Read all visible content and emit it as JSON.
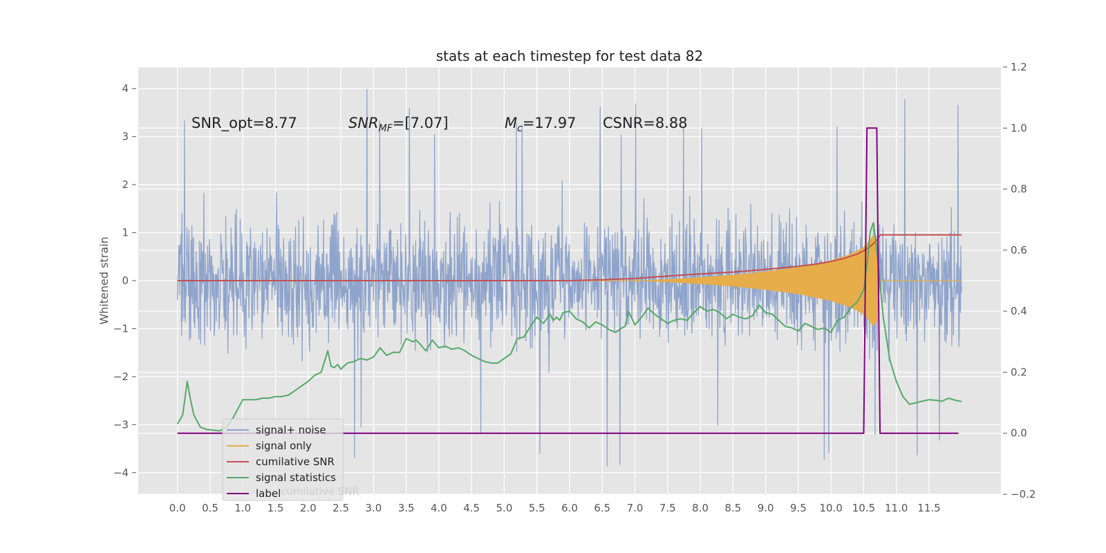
{
  "chart_data": {
    "type": "line",
    "title": "stats at each timestep for test data 82",
    "ylabel": "Whitened strain",
    "xlabel": "",
    "xlim": [
      -0.6,
      12.6
    ],
    "ylim": [
      -4.45,
      4.45
    ],
    "y2lim": [
      -0.2,
      1.2
    ],
    "grid": true,
    "x_ticks": [
      "0.0",
      "0.5",
      "1.0",
      "1.5",
      "2.0",
      "2.5",
      "3.0",
      "3.5",
      "4.0",
      "4.5",
      "5.0",
      "5.5",
      "6.0",
      "6.5",
      "7.0",
      "7.5",
      "8.0",
      "8.5",
      "9.0",
      "9.5",
      "10.0",
      "10.5",
      "11.0",
      "11.5"
    ],
    "x_tick_values": [
      0,
      0.5,
      1,
      1.5,
      2,
      2.5,
      3,
      3.5,
      4,
      4.5,
      5,
      5.5,
      6,
      6.5,
      7,
      7.5,
      8,
      8.5,
      9,
      9.5,
      10,
      10.5,
      11,
      11.5
    ],
    "y_ticks": [
      "4",
      "3",
      "2",
      "1",
      "0",
      "−1",
      "−2",
      "−3",
      "−4"
    ],
    "y_tick_values": [
      4,
      3,
      2,
      1,
      0,
      -1,
      -2,
      -3,
      -4
    ],
    "y2_ticks": [
      "1.2",
      "1.0",
      "0.8",
      "0.6",
      "0.4",
      "0.2",
      "0.0",
      "−0.2"
    ],
    "y2_tick_values": [
      1.2,
      1.0,
      0.8,
      0.6,
      0.4,
      0.2,
      0.0,
      -0.2
    ],
    "annotations": {
      "snr_opt": "SNR_opt=8.77",
      "snr_mf_main": "SNR",
      "snr_mf_sub": "MF",
      "snr_mf_value": "=[7.07]",
      "mc_main": "M",
      "mc_sub": "c",
      "mc_value": "=17.97",
      "csnr": "CSNR=8.88"
    },
    "legend": {
      "placement": "lower-left",
      "entries": [
        "signal+ noise",
        "signal only",
        "cumilative SNR",
        "signal statistics",
        "label"
      ],
      "ghost_text": "cumilative SNR"
    },
    "series": [
      {
        "name": "signal+ noise",
        "axis": "left",
        "color": "#8fa4cb",
        "x_range": [
          0,
          12.0
        ],
        "typical_envelope": 2.0,
        "extreme_max": 4.1,
        "extreme_min": -4.1
      },
      {
        "name": "signal only",
        "axis": "left",
        "color": "#e6ad4a",
        "envelope": {
          "x": [
            7.0,
            7.5,
            8.0,
            8.5,
            9.0,
            9.5,
            10.0,
            10.3,
            10.5,
            10.6,
            10.65,
            10.7,
            10.75
          ],
          "amp": [
            0.0,
            0.03,
            0.07,
            0.12,
            0.19,
            0.28,
            0.42,
            0.55,
            0.7,
            0.85,
            0.95,
            0.85,
            0.0
          ]
        },
        "after": {
          "x": [
            10.75,
            12.0
          ],
          "y": 0.0
        }
      },
      {
        "name": "cumilative SNR",
        "axis": "right",
        "color": "#c44e52",
        "x": [
          0,
          6.0,
          6.5,
          7.0,
          7.5,
          8.0,
          8.5,
          9.0,
          9.5,
          9.8,
          10.0,
          10.2,
          10.4,
          10.5,
          10.6,
          10.7,
          10.75,
          12.0
        ],
        "y": [
          0.5,
          0.5,
          0.503,
          0.507,
          0.515,
          0.522,
          0.528,
          0.537,
          0.547,
          0.555,
          0.563,
          0.573,
          0.587,
          0.598,
          0.612,
          0.632,
          0.65,
          0.65
        ]
      },
      {
        "name": "signal statistics",
        "axis": "right",
        "color": "#55a868",
        "x": [
          0,
          0.08,
          0.15,
          0.2,
          0.25,
          0.35,
          0.45,
          0.55,
          0.65,
          0.75,
          0.85,
          0.9,
          1.0,
          1.1,
          1.2,
          1.3,
          1.4,
          1.5,
          1.6,
          1.7,
          1.8,
          1.9,
          2.0,
          2.1,
          2.2,
          2.3,
          2.35,
          2.4,
          2.45,
          2.5,
          2.6,
          2.7,
          2.8,
          2.9,
          3.0,
          3.1,
          3.2,
          3.3,
          3.4,
          3.5,
          3.6,
          3.65,
          3.7,
          3.8,
          3.9,
          4.0,
          4.1,
          4.2,
          4.3,
          4.4,
          4.5,
          4.6,
          4.7,
          4.8,
          4.9,
          5.0,
          5.1,
          5.2,
          5.3,
          5.4,
          5.5,
          5.6,
          5.7,
          5.75,
          5.8,
          5.85,
          5.9,
          6.0,
          6.1,
          6.2,
          6.3,
          6.4,
          6.5,
          6.6,
          6.7,
          6.8,
          6.85,
          6.9,
          7.0,
          7.1,
          7.2,
          7.3,
          7.4,
          7.5,
          7.6,
          7.7,
          7.8,
          7.9,
          8.0,
          8.1,
          8.2,
          8.3,
          8.4,
          8.5,
          8.6,
          8.7,
          8.8,
          8.9,
          9.0,
          9.1,
          9.2,
          9.3,
          9.4,
          9.5,
          9.6,
          9.7,
          9.8,
          9.9,
          10.0,
          10.1,
          10.2,
          10.3,
          10.4,
          10.5,
          10.55,
          10.6,
          10.65,
          10.7,
          10.8,
          10.9,
          11.0,
          11.1,
          11.2,
          11.3,
          11.4,
          11.5,
          11.6,
          11.7,
          11.8,
          11.9,
          12.0
        ],
        "y": [
          0.03,
          0.06,
          0.17,
          0.11,
          0.06,
          0.02,
          0.012,
          0.01,
          0.008,
          0.02,
          0.05,
          0.07,
          0.11,
          0.11,
          0.11,
          0.115,
          0.115,
          0.12,
          0.12,
          0.125,
          0.14,
          0.155,
          0.17,
          0.19,
          0.2,
          0.27,
          0.22,
          0.215,
          0.225,
          0.21,
          0.23,
          0.235,
          0.245,
          0.24,
          0.25,
          0.28,
          0.255,
          0.265,
          0.265,
          0.31,
          0.3,
          0.305,
          0.295,
          0.27,
          0.305,
          0.28,
          0.285,
          0.275,
          0.28,
          0.27,
          0.255,
          0.245,
          0.235,
          0.23,
          0.23,
          0.245,
          0.26,
          0.31,
          0.315,
          0.35,
          0.38,
          0.36,
          0.39,
          0.37,
          0.38,
          0.37,
          0.395,
          0.4,
          0.375,
          0.365,
          0.345,
          0.365,
          0.355,
          0.34,
          0.33,
          0.345,
          0.35,
          0.4,
          0.355,
          0.38,
          0.41,
          0.39,
          0.375,
          0.36,
          0.37,
          0.375,
          0.37,
          0.395,
          0.415,
          0.4,
          0.405,
          0.395,
          0.375,
          0.39,
          0.38,
          0.375,
          0.385,
          0.42,
          0.395,
          0.39,
          0.37,
          0.35,
          0.345,
          0.335,
          0.36,
          0.35,
          0.34,
          0.345,
          0.33,
          0.37,
          0.38,
          0.41,
          0.43,
          0.47,
          0.55,
          0.66,
          0.69,
          0.6,
          0.38,
          0.24,
          0.17,
          0.12,
          0.095,
          0.1,
          0.105,
          0.11,
          0.108,
          0.105,
          0.115,
          0.108,
          0.104
        ]
      },
      {
        "name": "label",
        "axis": "right",
        "color": "#800080",
        "x": [
          0,
          10.5,
          10.55,
          10.7,
          10.75,
          11.95
        ],
        "y": [
          0,
          0,
          1,
          1,
          0,
          0
        ]
      }
    ]
  }
}
